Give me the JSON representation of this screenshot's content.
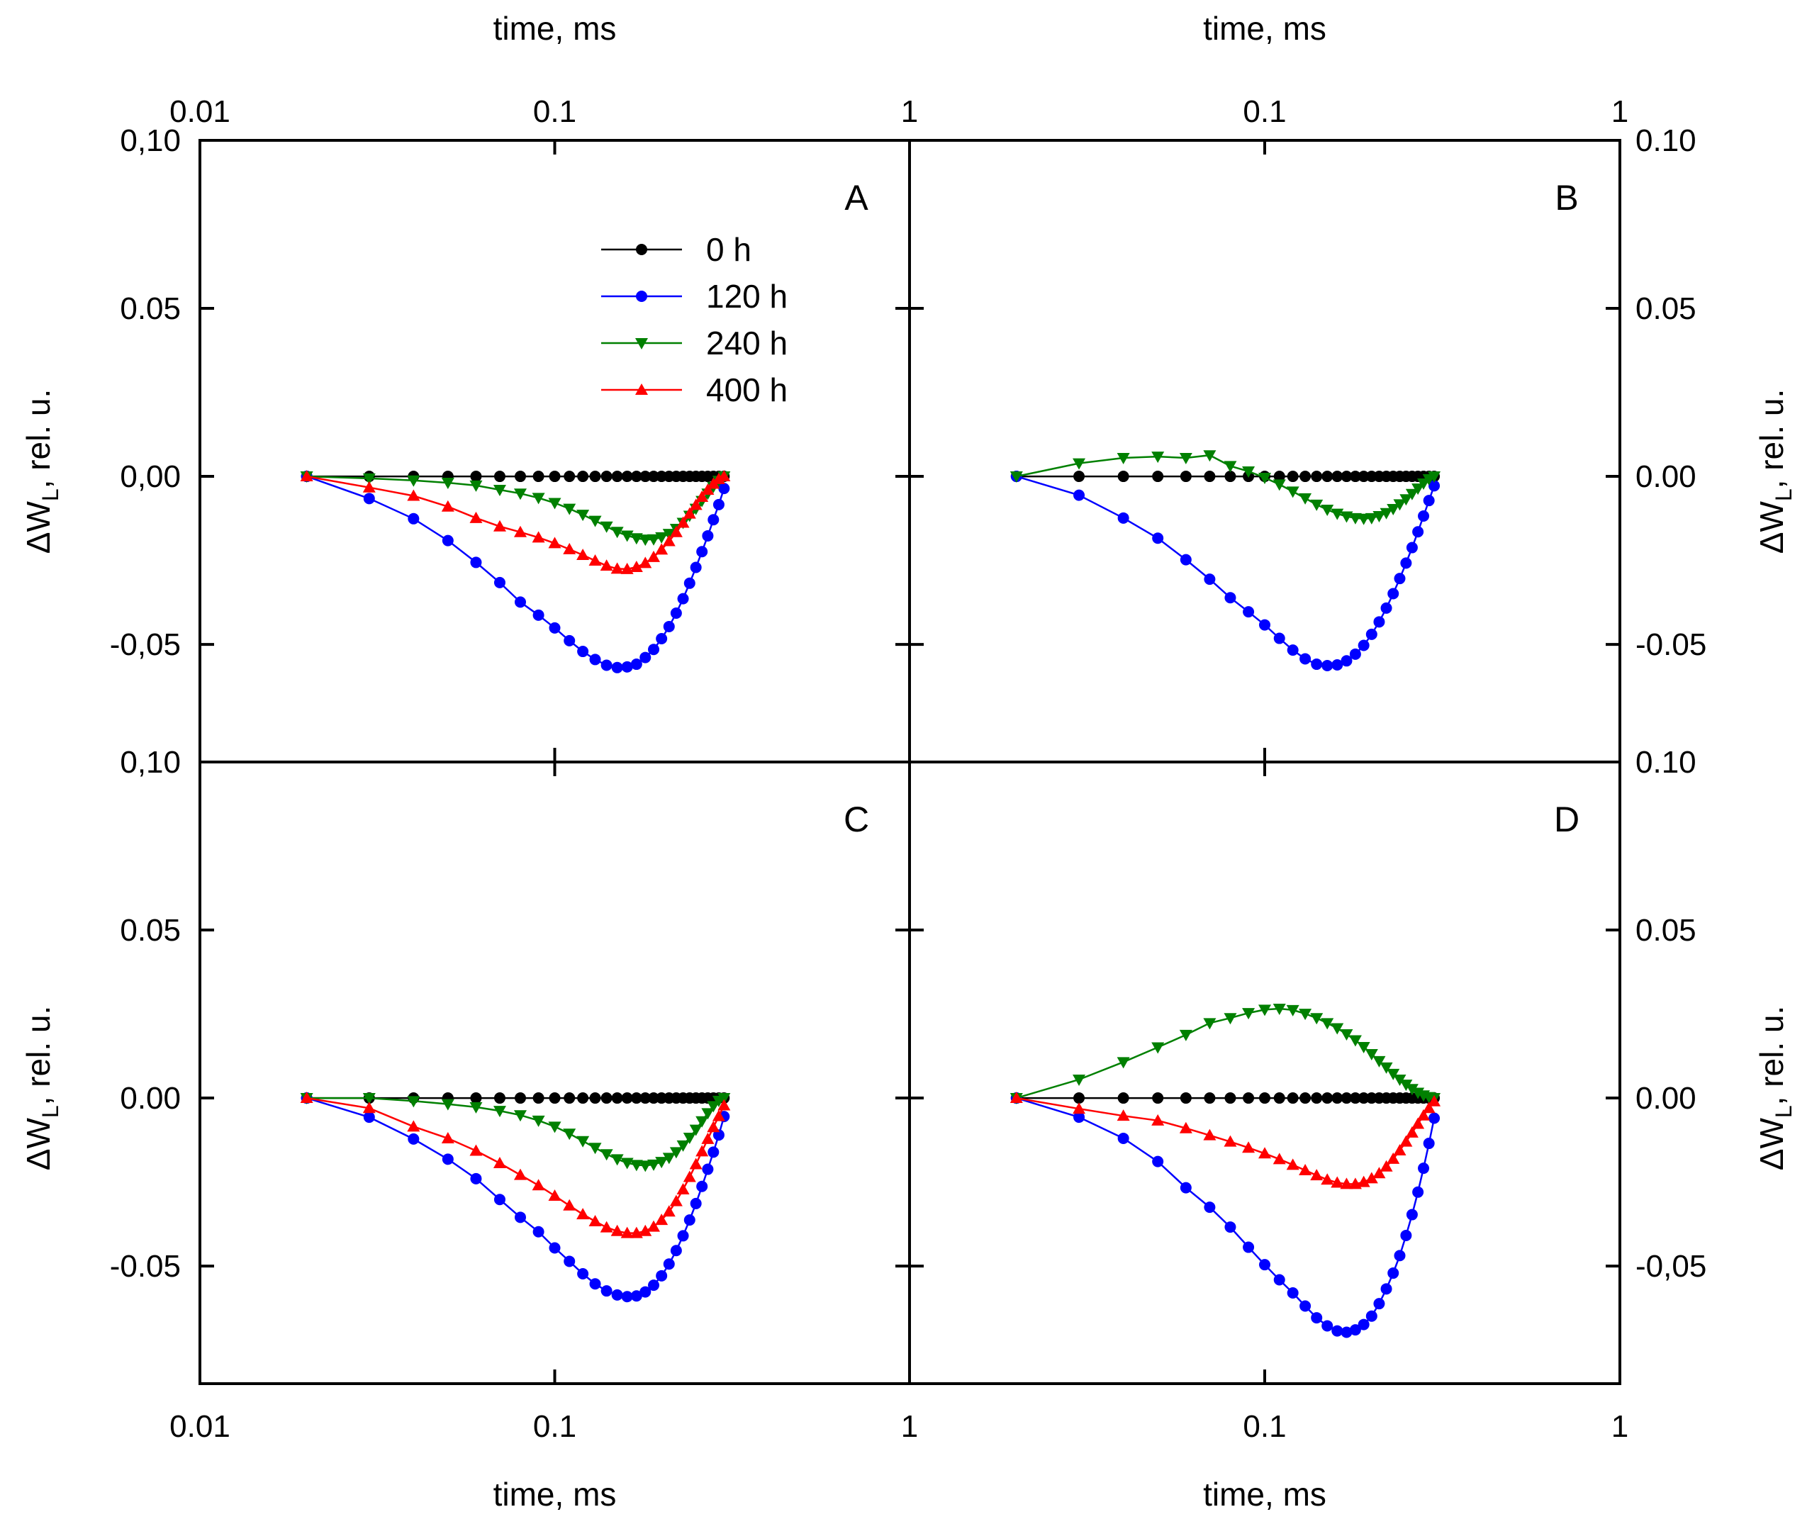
{
  "chart_data": {
    "type": "line",
    "x_scale": "log",
    "x_label": "time, ms",
    "y_label_main": "ΔW",
    "y_label_sub": "L",
    "y_label_rest": ", rel. u.",
    "xlim": [
      0.01,
      1
    ],
    "ylim_top_panels": [
      -0.085,
      0.1
    ],
    "ylim_bottom_panels": [
      -0.085,
      0.1
    ],
    "x_ticks_left": [
      "0.01",
      "0.1",
      "1"
    ],
    "x_ticks_right": [
      "0.1",
      "1"
    ],
    "y_ticks_left_top": [
      "0,10",
      "0.05",
      "0,00",
      "-0,05"
    ],
    "y_ticks_left_bottom": [
      "0,10",
      "0.05",
      "0.00",
      "-0.05"
    ],
    "y_ticks_right_top": [
      "0.10",
      "0.05",
      "0.00",
      "-0.05"
    ],
    "y_ticks_right_bottom": [
      "0.10",
      "0.05",
      "0.00",
      "-0,05"
    ],
    "x_times": [
      0.02,
      0.03,
      0.04,
      0.05,
      0.06,
      0.07,
      0.08,
      0.09,
      0.1,
      0.11,
      0.12,
      0.13,
      0.14,
      0.15,
      0.16,
      0.17,
      0.18,
      0.19,
      0.2,
      0.21,
      0.22,
      0.23,
      0.24,
      0.25,
      0.26,
      0.27,
      0.28,
      0.29,
      0.3
    ],
    "legend": [
      {
        "label": "0 h",
        "color": "#000000",
        "marker": "circle"
      },
      {
        "label": "120 h",
        "color": "#0000ff",
        "marker": "circle"
      },
      {
        "label": "240 h",
        "color": "#008000",
        "marker": "triangle-down"
      },
      {
        "label": "400 h",
        "color": "#ff0000",
        "marker": "triangle-up"
      }
    ],
    "panels": [
      {
        "label": "A",
        "series": [
          {
            "name": "0 h",
            "values": [
              0,
              0,
              0,
              0,
              0,
              0,
              0,
              0,
              0,
              0,
              0,
              0,
              0,
              0,
              0,
              0,
              0,
              0,
              0,
              0,
              0,
              0,
              0,
              0,
              0,
              0,
              0,
              0,
              0
            ]
          },
          {
            "name": "120 h",
            "values": [
              0,
              -0.0066,
              -0.0126,
              -0.0191,
              -0.0256,
              -0.0316,
              -0.0374,
              -0.0413,
              -0.0451,
              -0.0489,
              -0.0521,
              -0.0545,
              -0.0562,
              -0.0569,
              -0.0567,
              -0.0559,
              -0.0539,
              -0.0515,
              -0.0483,
              -0.0447,
              -0.0407,
              -0.0364,
              -0.0318,
              -0.0271,
              -0.0224,
              -0.0177,
              -0.0129,
              -0.0084,
              -0.0036
            ]
          },
          {
            "name": "240 h",
            "values": [
              0,
              -0.0006,
              -0.0012,
              -0.0019,
              -0.0027,
              -0.004,
              -0.0051,
              -0.0064,
              -0.0079,
              -0.0096,
              -0.0114,
              -0.0132,
              -0.0149,
              -0.0165,
              -0.0176,
              -0.0184,
              -0.0188,
              -0.0187,
              -0.0181,
              -0.0171,
              -0.0156,
              -0.0138,
              -0.0117,
              -0.0096,
              -0.0073,
              -0.0051,
              -0.0031,
              -0.0013,
              0
            ]
          },
          {
            "name": "400 h",
            "values": [
              0,
              -0.0033,
              -0.0058,
              -0.009,
              -0.0124,
              -0.0149,
              -0.0166,
              -0.0182,
              -0.0199,
              -0.0217,
              -0.0234,
              -0.0251,
              -0.0266,
              -0.0275,
              -0.0276,
              -0.027,
              -0.0258,
              -0.024,
              -0.0218,
              -0.0193,
              -0.0166,
              -0.0138,
              -0.0111,
              -0.0085,
              -0.0061,
              -0.004,
              -0.0022,
              -0.0008,
              0
            ]
          }
        ]
      },
      {
        "label": "B",
        "series": [
          {
            "name": "0 h",
            "values": [
              0,
              0,
              0,
              0,
              0,
              0,
              0,
              0,
              0,
              0,
              0,
              0,
              0,
              0,
              0,
              0,
              0,
              0,
              0,
              0,
              0,
              0,
              0,
              0,
              0,
              0,
              0,
              0,
              0
            ]
          },
          {
            "name": "120 h",
            "values": [
              0,
              -0.0056,
              -0.0124,
              -0.0184,
              -0.0248,
              -0.0306,
              -0.0361,
              -0.0403,
              -0.0442,
              -0.0482,
              -0.0517,
              -0.0543,
              -0.0559,
              -0.0563,
              -0.0561,
              -0.0549,
              -0.0529,
              -0.0503,
              -0.047,
              -0.0433,
              -0.0392,
              -0.0349,
              -0.0304,
              -0.0258,
              -0.0212,
              -0.0165,
              -0.0118,
              -0.0072,
              -0.0028
            ]
          },
          {
            "name": "240 h",
            "values": [
              0,
              0.0039,
              0.0055,
              0.0059,
              0.0055,
              0.0063,
              0.0031,
              0.0015,
              -0.0004,
              -0.0024,
              -0.0045,
              -0.0065,
              -0.0084,
              -0.0099,
              -0.0111,
              -0.0119,
              -0.0124,
              -0.0126,
              -0.0124,
              -0.0118,
              -0.0109,
              -0.0097,
              -0.0083,
              -0.0068,
              -0.0052,
              -0.0036,
              -0.0021,
              -0.0008,
              0
            ]
          }
        ]
      },
      {
        "label": "C",
        "series": [
          {
            "name": "0 h",
            "values": [
              0,
              0,
              0,
              0,
              0,
              0,
              0,
              0,
              0,
              0,
              0,
              0,
              0,
              0,
              0,
              0,
              0,
              0,
              0,
              0,
              0,
              0,
              0,
              0,
              0,
              0,
              0,
              0,
              0
            ]
          },
          {
            "name": "120 h",
            "values": [
              0,
              -0.0057,
              -0.0122,
              -0.0182,
              -0.024,
              -0.0302,
              -0.0355,
              -0.0398,
              -0.0446,
              -0.0486,
              -0.0523,
              -0.0553,
              -0.0574,
              -0.0586,
              -0.0591,
              -0.0589,
              -0.0577,
              -0.0557,
              -0.0529,
              -0.0494,
              -0.0454,
              -0.041,
              -0.0363,
              -0.0314,
              -0.0263,
              -0.0212,
              -0.0161,
              -0.011,
              -0.0055
            ]
          },
          {
            "name": "240 h",
            "values": [
              0,
              0,
              -0.0009,
              -0.0018,
              -0.0027,
              -0.0038,
              -0.0051,
              -0.0067,
              -0.0085,
              -0.0106,
              -0.0128,
              -0.0148,
              -0.0167,
              -0.0182,
              -0.0193,
              -0.0199,
              -0.0201,
              -0.0198,
              -0.019,
              -0.0178,
              -0.0161,
              -0.0141,
              -0.0118,
              -0.0094,
              -0.0069,
              -0.0045,
              -0.0024,
              -0.0008,
              0
            ]
          },
          {
            "name": "400 h",
            "values": [
              0,
              -0.003,
              -0.0085,
              -0.012,
              -0.0157,
              -0.0194,
              -0.0229,
              -0.026,
              -0.0291,
              -0.032,
              -0.0346,
              -0.0367,
              -0.0385,
              -0.0396,
              -0.0402,
              -0.0402,
              -0.0396,
              -0.0383,
              -0.0363,
              -0.0338,
              -0.0307,
              -0.0272,
              -0.0235,
              -0.0197,
              -0.0159,
              -0.0122,
              -0.0087,
              -0.0054,
              -0.0022
            ]
          }
        ]
      },
      {
        "label": "D",
        "series": [
          {
            "name": "0 h",
            "values": [
              0,
              0,
              0,
              0,
              0,
              0,
              0,
              0,
              0,
              0,
              0,
              0,
              0,
              0,
              0,
              0,
              0,
              0,
              0,
              0,
              0,
              0,
              0,
              0,
              0,
              0,
              0,
              0,
              0
            ]
          },
          {
            "name": "120 h",
            "values": [
              0,
              -0.0057,
              -0.012,
              -0.0189,
              -0.0267,
              -0.0325,
              -0.0384,
              -0.0444,
              -0.0496,
              -0.0541,
              -0.058,
              -0.0619,
              -0.0654,
              -0.0678,
              -0.0693,
              -0.0697,
              -0.069,
              -0.0674,
              -0.0649,
              -0.0612,
              -0.0568,
              -0.0521,
              -0.0469,
              -0.0409,
              -0.0347,
              -0.028,
              -0.0209,
              -0.0135,
              -0.006
            ]
          },
          {
            "name": "240 h",
            "values": [
              0,
              0.0055,
              0.0107,
              0.0151,
              0.0188,
              0.0223,
              0.0238,
              0.0253,
              0.0263,
              0.0266,
              0.0262,
              0.0251,
              0.0238,
              0.0223,
              0.0208,
              0.019,
              0.0172,
              0.0152,
              0.0131,
              0.011,
              0.0091,
              0.0072,
              0.0055,
              0.004,
              0.0027,
              0.0016,
              0.0008,
              0.0003,
              0
            ]
          },
          {
            "name": "400 h",
            "values": [
              0,
              -0.0032,
              -0.0053,
              -0.0067,
              -0.009,
              -0.0111,
              -0.013,
              -0.0148,
              -0.0165,
              -0.0182,
              -0.0199,
              -0.0215,
              -0.023,
              -0.0243,
              -0.0252,
              -0.0256,
              -0.0256,
              -0.025,
              -0.0239,
              -0.0224,
              -0.0204,
              -0.0181,
              -0.0156,
              -0.013,
              -0.0103,
              -0.0077,
              -0.0052,
              -0.003,
              -0.001
            ]
          }
        ]
      }
    ]
  }
}
